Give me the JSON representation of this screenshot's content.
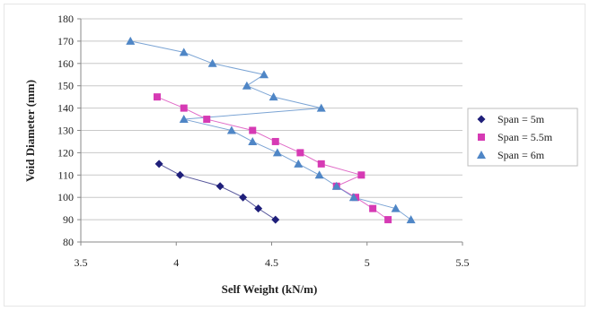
{
  "chart_data": {
    "type": "scatter",
    "title": "",
    "xlabel": "Self Weight (kN/m)",
    "ylabel": "Void Diameter (mm)",
    "xlim": [
      3.5,
      5.5
    ],
    "ylim": [
      80,
      180
    ],
    "x_ticks": [
      "3.5",
      "4",
      "4.5",
      "5",
      "5.5"
    ],
    "y_ticks": [
      "80",
      "90",
      "100",
      "110",
      "120",
      "130",
      "140",
      "150",
      "160",
      "170",
      "180"
    ],
    "grid": "horizontal",
    "legend_position": "right",
    "lines_connect_points": true,
    "series": [
      {
        "name": "Span = 5m",
        "marker": "diamond",
        "color": "#1f1f7a",
        "points": [
          {
            "x": 3.91,
            "y": 115
          },
          {
            "x": 4.02,
            "y": 110
          },
          {
            "x": 4.23,
            "y": 105
          },
          {
            "x": 4.35,
            "y": 100
          },
          {
            "x": 4.43,
            "y": 95
          },
          {
            "x": 4.52,
            "y": 90
          }
        ]
      },
      {
        "name": "Span = 5.5m",
        "marker": "square",
        "color": "#d63ab4",
        "points": [
          {
            "x": 3.9,
            "y": 145
          },
          {
            "x": 4.04,
            "y": 140
          },
          {
            "x": 4.16,
            "y": 135
          },
          {
            "x": 4.4,
            "y": 130
          },
          {
            "x": 4.52,
            "y": 125
          },
          {
            "x": 4.65,
            "y": 120
          },
          {
            "x": 4.76,
            "y": 115
          },
          {
            "x": 4.97,
            "y": 110
          },
          {
            "x": 4.84,
            "y": 105
          },
          {
            "x": 4.94,
            "y": 100
          },
          {
            "x": 5.03,
            "y": 95
          },
          {
            "x": 5.11,
            "y": 90
          }
        ]
      },
      {
        "name": "Span = 6m",
        "marker": "triangle",
        "color": "#4f86c6",
        "points": [
          {
            "x": 3.76,
            "y": 170
          },
          {
            "x": 4.04,
            "y": 165
          },
          {
            "x": 4.19,
            "y": 160
          },
          {
            "x": 4.46,
            "y": 155
          },
          {
            "x": 4.37,
            "y": 150
          },
          {
            "x": 4.51,
            "y": 145
          },
          {
            "x": 4.76,
            "y": 140
          },
          {
            "x": 4.04,
            "y": 135
          },
          {
            "x": 4.29,
            "y": 130
          },
          {
            "x": 4.4,
            "y": 125
          },
          {
            "x": 4.53,
            "y": 120
          },
          {
            "x": 4.64,
            "y": 115
          },
          {
            "x": 4.75,
            "y": 110
          },
          {
            "x": 4.84,
            "y": 105
          },
          {
            "x": 4.93,
            "y": 100
          },
          {
            "x": 5.15,
            "y": 95
          },
          {
            "x": 5.23,
            "y": 90
          }
        ]
      }
    ]
  }
}
